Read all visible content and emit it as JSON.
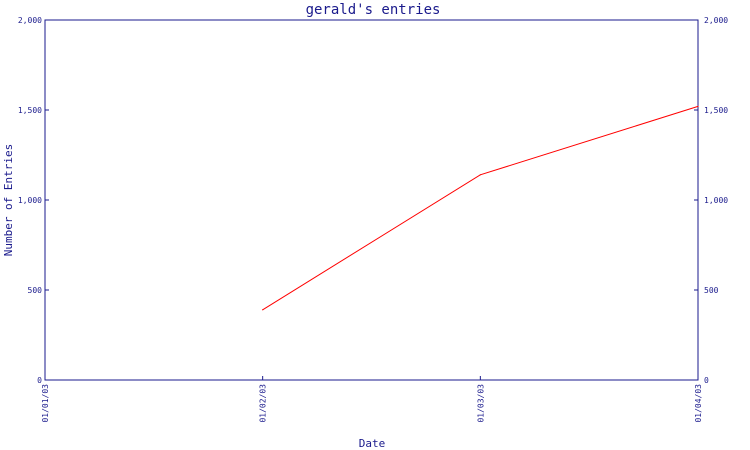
{
  "chart_data": {
    "type": "line",
    "title": "gerald's entries",
    "xlabel": "Date",
    "ylabel": "Number of Entries",
    "x_tick_labels": [
      "01/01/03",
      "01/02/03",
      "01/03/03",
      "01/04/03"
    ],
    "y_tick_labels": [
      "0",
      "500",
      "1,000",
      "1,500",
      "2,000"
    ],
    "y_ticks": [
      0,
      500,
      1000,
      1500,
      2000
    ],
    "ylim": [
      0,
      2000
    ],
    "right_axis": true,
    "grid": false,
    "series": [
      {
        "color": "#ff0000",
        "points": [
          {
            "x": "01/02/03",
            "y": 390
          },
          {
            "x": "01/03/03",
            "y": 1140
          },
          {
            "x": "01/04/03",
            "y": 1520
          }
        ]
      }
    ],
    "axis_color": "#1a1a8c"
  }
}
